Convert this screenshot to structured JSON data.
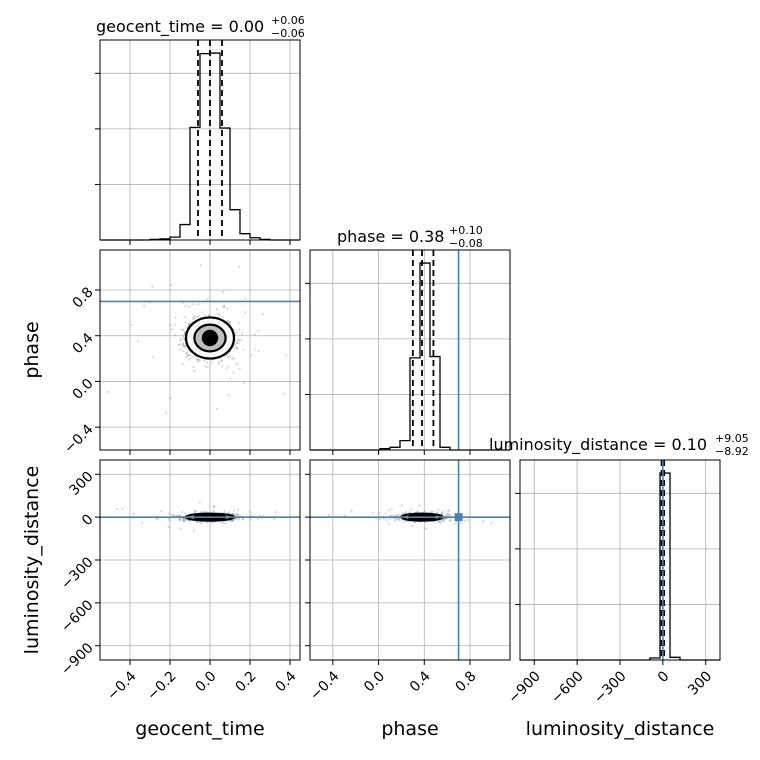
{
  "colors": {
    "truth": "#4682b4",
    "hist": "#000000",
    "grid": "#b0b0b0"
  },
  "chart_data": {
    "type": "corner",
    "parameters": [
      {
        "name": "geocent_time",
        "title": "geocent_time = 0.00",
        "err_plus": "+0.06",
        "err_minus": "−0.06",
        "range": [
          -0.55,
          0.45
        ],
        "ticks": [
          -0.4,
          -0.2,
          0.0,
          0.2,
          0.4
        ],
        "tick_labels": [
          "−0.4",
          "−0.2",
          "0.0",
          "0.2",
          "0.4"
        ],
        "median": 0.0,
        "q_low": -0.06,
        "q_high": 0.06,
        "truth": null,
        "hist_edges": [
          -0.55,
          -0.5,
          -0.45,
          -0.4,
          -0.35,
          -0.3,
          -0.25,
          -0.2,
          -0.15,
          -0.1,
          -0.05,
          0.0,
          0.05,
          0.1,
          0.15,
          0.2,
          0.25,
          0.3,
          0.35,
          0.4,
          0.45
        ],
        "hist_counts": [
          0,
          0,
          0,
          0,
          0,
          1,
          2,
          5,
          27,
          197,
          326,
          327,
          196,
          53,
          11,
          4,
          1,
          0,
          0,
          0
        ]
      },
      {
        "name": "phase",
        "title": "phase = 0.38",
        "err_plus": "+0.10",
        "err_minus": "−0.08",
        "range": [
          -0.6,
          1.15
        ],
        "ticks": [
          -0.4,
          0.0,
          0.4,
          0.8
        ],
        "tick_labels": [
          "−0.4",
          "0.0",
          "0.4",
          "0.8"
        ],
        "median": 0.38,
        "q_low": 0.3,
        "q_high": 0.48,
        "truth": 0.7,
        "hist_edges": [
          -0.6,
          -0.5125,
          -0.425,
          -0.3375,
          -0.25,
          -0.1625,
          -0.075,
          0.0125,
          0.1,
          0.1875,
          0.275,
          0.3625,
          0.45,
          0.5375,
          0.625,
          0.7125,
          0.8,
          0.8875,
          0.975,
          1.0625,
          1.15
        ],
        "hist_counts": [
          0,
          0,
          0,
          0,
          0,
          0,
          0,
          1,
          2,
          7,
          69,
          140,
          70,
          2,
          0,
          0,
          0,
          0,
          0,
          0
        ]
      },
      {
        "name": "luminosity_distance",
        "title": "luminosity_distance = 0.10",
        "err_plus": "+9.05",
        "err_minus": "−8.92",
        "range": [
          -1000,
          400
        ],
        "ticks": [
          -900,
          -600,
          -300,
          0,
          300
        ],
        "tick_labels": [
          "−900",
          "−600",
          "−300",
          "0",
          "300"
        ],
        "median": 0.1,
        "q_low": -8.92,
        "q_high": 9.05,
        "truth": 0.0,
        "hist_edges": [
          -1000,
          -930,
          -860,
          -790,
          -720,
          -650,
          -580,
          -510,
          -440,
          -370,
          -300,
          -230,
          -160,
          -90,
          -20,
          50,
          120,
          190,
          260,
          330,
          400
        ],
        "hist_counts": [
          0,
          0,
          0,
          0,
          0,
          0,
          0,
          0,
          0,
          0,
          0,
          0,
          0,
          6,
          560,
          8,
          0,
          0,
          0,
          0
        ]
      }
    ],
    "x_axis_labels": [
      "geocent_time",
      "phase",
      "luminosity_distance"
    ],
    "y_axis_labels": [
      "phase",
      "luminosity_distance"
    ],
    "scatter_2d": [
      {
        "x": "geocent_time",
        "y": "phase",
        "center": [
          0.0,
          0.38
        ],
        "sigma": [
          0.06,
          0.09
        ],
        "truth_y": 0.7
      },
      {
        "x": "geocent_time",
        "y": "luminosity_distance",
        "center": [
          0.0,
          0.0
        ],
        "sigma": [
          0.06,
          12
        ],
        "truth_y": 0.0
      },
      {
        "x": "phase",
        "y": "luminosity_distance",
        "center": [
          0.38,
          0.0
        ],
        "sigma": [
          0.09,
          12
        ],
        "truth_x": 0.7,
        "truth_y": 0.0
      }
    ],
    "grid": true
  }
}
